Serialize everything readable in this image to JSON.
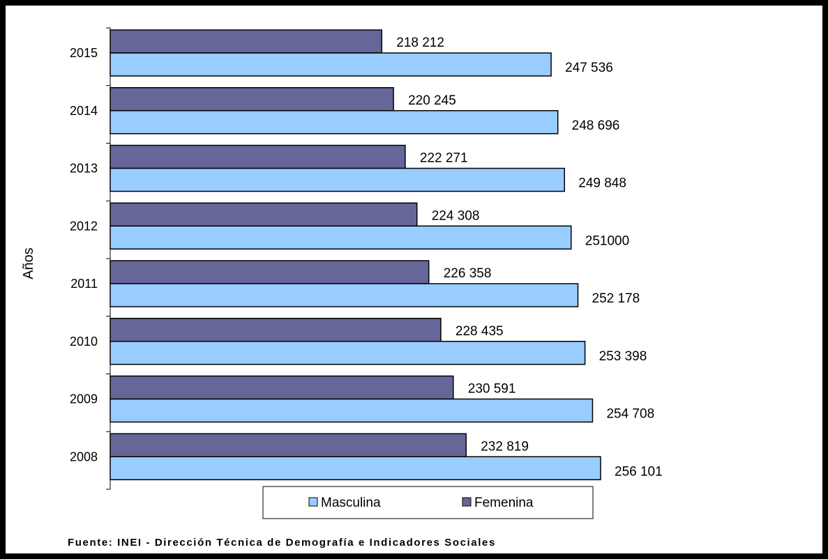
{
  "chart_data": {
    "type": "bar",
    "orientation": "horizontal",
    "categories": [
      "2015",
      "2014",
      "2013",
      "2012",
      "2011",
      "2010",
      "2009",
      "2008"
    ],
    "series": [
      {
        "name": "Femenina",
        "color": "#666699",
        "values": [
          218212,
          220245,
          222271,
          224308,
          226358,
          228435,
          230591,
          232819
        ],
        "labels": [
          "218 212",
          "220 245",
          "222 271",
          "224 308",
          "226 358",
          "228 435",
          "230 591",
          "232 819"
        ]
      },
      {
        "name": "Masculina",
        "color": "#99ccff",
        "values": [
          247536,
          248696,
          249848,
          251000,
          252178,
          253398,
          254708,
          256101
        ],
        "labels": [
          "247 536",
          "248 696",
          "249 848",
          "251000",
          "252 178",
          "253 398",
          "254 708",
          "256 101"
        ]
      }
    ],
    "ylabel": "Años",
    "legend": [
      "Masculina",
      "Femenina"
    ],
    "legend_position": "bottom",
    "grid": false
  },
  "source": "Fuente: INEI - Dirección Técnica de Demografía e Indicadores Sociales"
}
